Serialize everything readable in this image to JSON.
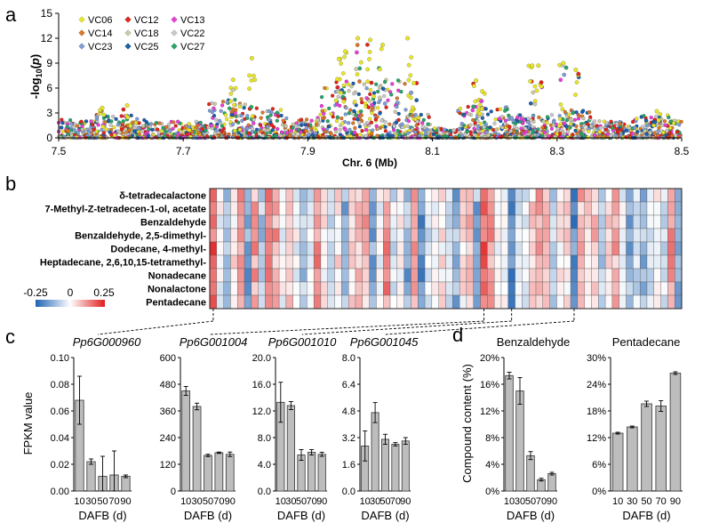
{
  "panel_labels": [
    "a",
    "b",
    "c",
    "d"
  ],
  "chart_data": [
    {
      "id": "manhattan",
      "type": "scatter",
      "xlabel": "Chr. 6 (Mb)",
      "ylabel_parts": [
        "-log",
        "10",
        "(",
        "p",
        ")"
      ],
      "xlim": [
        7.5,
        8.5
      ],
      "ylim": [
        0,
        15
      ],
      "xticks": [
        "7.5",
        "7.7",
        "7.9",
        "8.1",
        "8.3",
        "8.5"
      ],
      "yticks": [
        "0",
        "3",
        "6",
        "9",
        "12",
        "15"
      ],
      "legend_position": "top-left",
      "series": [
        {
          "name": "VC06",
          "color": "#e8e52a"
        },
        {
          "name": "VC12",
          "color": "#e0261e"
        },
        {
          "name": "VC13",
          "color": "#e83fd5"
        },
        {
          "name": "VC14",
          "color": "#d9782a"
        },
        {
          "name": "VC18",
          "color": "#c9c9a8"
        },
        {
          "name": "VC22",
          "color": "#c8c8c8"
        },
        {
          "name": "VC23",
          "color": "#7f9ed6"
        },
        {
          "name": "VC25",
          "color": "#1d5fa8"
        },
        {
          "name": "VC27",
          "color": "#2aa36b"
        }
      ],
      "peaks": [
        {
          "x": 7.96,
          "y": 10.4
        },
        {
          "x": 7.98,
          "y": 12.0
        },
        {
          "x": 8.0,
          "y": 11.8
        },
        {
          "x": 8.02,
          "y": 11.2
        },
        {
          "x": 8.06,
          "y": 12.0
        },
        {
          "x": 7.95,
          "y": 9.5
        },
        {
          "x": 7.78,
          "y": 7.0
        },
        {
          "x": 7.81,
          "y": 9.6
        },
        {
          "x": 8.07,
          "y": 6.6
        },
        {
          "x": 8.17,
          "y": 6.9
        },
        {
          "x": 8.26,
          "y": 8.7
        },
        {
          "x": 8.27,
          "y": 8.7
        },
        {
          "x": 8.31,
          "y": 9.0
        },
        {
          "x": 8.33,
          "y": 8.2
        },
        {
          "x": 8.18,
          "y": 5.6
        },
        {
          "x": 7.57,
          "y": 3.6
        },
        {
          "x": 7.61,
          "y": 3.9
        },
        {
          "x": 8.46,
          "y": 3.2
        }
      ]
    },
    {
      "id": "heatmap",
      "type": "heatmap",
      "rows": [
        "δ-tetradecalactone",
        "7-Methyl-Z-tetradecen-1-ol, acetate",
        "Benzaldehyde",
        "Benzaldehyde, 2,5-dimethyl-",
        "Dodecane, 4-methyl-",
        "Heptadecane, 2,6,10,15-tetramethyl-",
        "Nonadecane",
        "Nonalactone",
        "Pentadecane"
      ],
      "n_columns": 68,
      "colorbar": {
        "min": "-0.25",
        "mid": "0",
        "max": "0.25",
        "low_color": "#2b6cb8",
        "high_color": "#e02828"
      },
      "highlighted_columns": [
        0,
        39,
        43,
        52
      ]
    },
    {
      "id": "Pp6G000960",
      "type": "bar",
      "title": "Pp6G000960",
      "categories": [
        "10",
        "30",
        "50",
        "70",
        "90"
      ],
      "values": [
        0.068,
        0.022,
        0.011,
        0.012,
        0.011
      ],
      "errors": [
        0.018,
        0.002,
        0.015,
        0.018,
        0.001
      ],
      "ylim": [
        0,
        0.1
      ],
      "yticks": [
        "0.00",
        "0.02",
        "0.04",
        "0.06",
        "0.08",
        "0.10"
      ],
      "ylabel": "FPKM value",
      "xlabel": "DAFB (d)"
    },
    {
      "id": "Pp6G001004",
      "type": "bar",
      "title": "Pp6G001004",
      "categories": [
        "10",
        "30",
        "50",
        "70",
        "90"
      ],
      "values": [
        450,
        380,
        160,
        172,
        165
      ],
      "errors": [
        20,
        15,
        5,
        3,
        10
      ],
      "ylim": [
        0,
        600
      ],
      "yticks": [
        "0",
        "120",
        "240",
        "360",
        "480",
        "600"
      ],
      "ylabel": "",
      "xlabel": "DAFB (d)"
    },
    {
      "id": "Pp6G001010",
      "type": "bar",
      "title": "Pp6G001010",
      "categories": [
        "10",
        "30",
        "50",
        "70",
        "90"
      ],
      "values": [
        13.3,
        12.8,
        5.4,
        5.8,
        5.5
      ],
      "errors": [
        3.0,
        0.6,
        0.8,
        0.4,
        0.3
      ],
      "ylim": [
        0,
        20
      ],
      "yticks": [
        "0.0",
        "4.0",
        "8.0",
        "12.0",
        "16.0",
        "20.0"
      ],
      "ylabel": "",
      "xlabel": "DAFB (d)"
    },
    {
      "id": "Pp6G001045",
      "type": "bar",
      "title": "Pp6G001045",
      "categories": [
        "10",
        "30",
        "50",
        "70",
        "90"
      ],
      "values": [
        2.7,
        4.7,
        3.1,
        2.8,
        3.0
      ],
      "errors": [
        0.9,
        0.6,
        0.3,
        0.1,
        0.2
      ],
      "ylim": [
        0,
        8
      ],
      "yticks": [
        "0.0",
        "1.6",
        "3.2",
        "4.8",
        "6.4",
        "8.0"
      ],
      "ylabel": "",
      "xlabel": "DAFB (d)"
    },
    {
      "id": "Benzaldehyde",
      "type": "bar",
      "title": "Benzaldehyde",
      "categories": [
        "10",
        "30",
        "50",
        "70",
        "90"
      ],
      "values": [
        17.3,
        15.0,
        5.3,
        1.7,
        2.6
      ],
      "errors": [
        0.5,
        2.0,
        0.6,
        0.2,
        0.2
      ],
      "ylim": [
        0,
        20
      ],
      "yticks": [
        "0%",
        "4%",
        "8%",
        "12%",
        "16%",
        "20%"
      ],
      "ylabel": "Compound content (%)",
      "xlabel": "DAFB (d)"
    },
    {
      "id": "Pentadecane",
      "type": "bar",
      "title": "Pentadecane",
      "categories": [
        "10",
        "30",
        "50",
        "70",
        "90"
      ],
      "values": [
        13.0,
        14.4,
        19.6,
        19.1,
        26.5
      ],
      "errors": [
        0.2,
        0.2,
        0.6,
        1.2,
        0.3
      ],
      "ylim": [
        0,
        30
      ],
      "yticks": [
        "0%",
        "6%",
        "12%",
        "18%",
        "24%",
        "30%"
      ],
      "ylabel": "",
      "xlabel": "DAFB (d)"
    }
  ]
}
